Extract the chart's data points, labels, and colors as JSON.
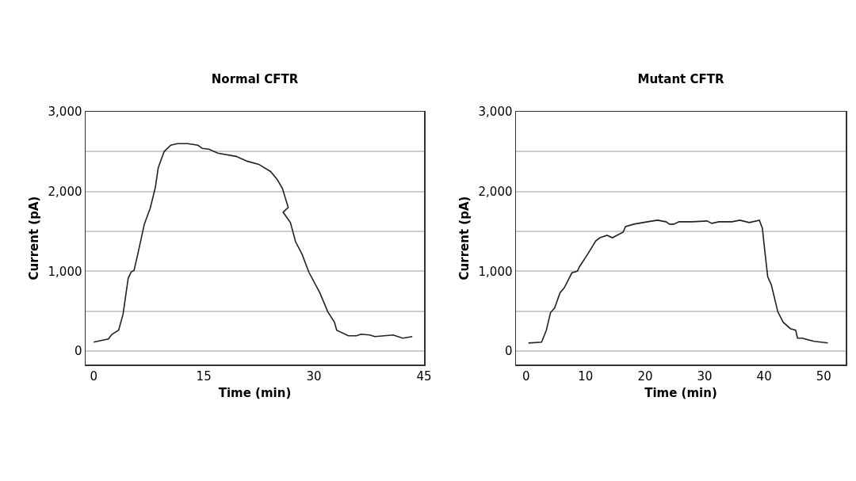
{
  "chart_data": [
    {
      "type": "line",
      "title": "Normal CFTR",
      "xlabel": "Time (min)",
      "ylabel": "Current (pA)",
      "series": [
        {
          "color": "#222222",
          "x": [
            0.0,
            2.0,
            2.5,
            3.4,
            4.0,
            4.7,
            5.1,
            5.5,
            6.0,
            6.9,
            7.7,
            8.4,
            8.8,
            9.6,
            10.5,
            11.4,
            12.8,
            14.2,
            14.8,
            15.7,
            16.9,
            19.4,
            20.9,
            22.5,
            24.1,
            25.0,
            25.7,
            26.5,
            25.8,
            26.8,
            27.5,
            28.4,
            29.3,
            30.8,
            31.9,
            32.8,
            33.1,
            34.7,
            35.8,
            36.4,
            37.6,
            38.3,
            40.8,
            42.1,
            43.4
          ],
          "values": [
            110,
            150,
            210,
            260,
            460,
            910,
            990,
            1010,
            1210,
            1590,
            1790,
            2050,
            2300,
            2500,
            2580,
            2600,
            2600,
            2580,
            2540,
            2530,
            2480,
            2440,
            2380,
            2340,
            2250,
            2150,
            2040,
            1800,
            1740,
            1610,
            1370,
            1210,
            990,
            730,
            490,
            360,
            260,
            190,
            190,
            210,
            200,
            180,
            200,
            160,
            180
          ]
        }
      ],
      "xlim": [
        -1.1,
        45
      ],
      "xticks": [
        0,
        15,
        30,
        45
      ],
      "ylim": [
        -170,
        3000
      ],
      "yticks": [
        0,
        {
          "value": 500,
          "label": null
        },
        {
          "value": 1000,
          "label": "1,000"
        },
        {
          "value": 1500,
          "label": null
        },
        {
          "value": 2000,
          "label": "2,000"
        },
        {
          "value": 2500,
          "label": null
        },
        {
          "value": 3000,
          "label": "3,000"
        }
      ],
      "grid": "y",
      "marker": "none",
      "line_style": "solid"
    },
    {
      "type": "line",
      "title": "Mutant CFTR",
      "xlabel": "Time (min)",
      "ylabel": "Current (pA)",
      "series": [
        {
          "color": "#222222",
          "x": [
            0.4,
            2.6,
            3.4,
            4.1,
            4.8,
            5.7,
            6.4,
            7.7,
            8.6,
            9.0,
            10.4,
            11.7,
            12.4,
            13.6,
            14.5,
            16.3,
            16.7,
            18.1,
            20.4,
            22.1,
            23.5,
            24.1,
            24.8,
            25.7,
            27.9,
            30.4,
            31.2,
            32.4,
            34.6,
            35.9,
            37.5,
            39.2,
            39.7,
            40.1,
            40.6,
            41.2,
            42.3,
            43.2,
            44.4,
            45.3,
            45.6,
            46.4,
            48.4,
            50.7
          ],
          "values": [
            100,
            110,
            260,
            480,
            540,
            730,
            790,
            980,
            1000,
            1060,
            1220,
            1380,
            1420,
            1450,
            1420,
            1490,
            1560,
            1590,
            1620,
            1640,
            1620,
            1590,
            1590,
            1620,
            1620,
            1630,
            1600,
            1620,
            1620,
            1640,
            1610,
            1640,
            1540,
            1260,
            930,
            830,
            490,
            360,
            280,
            260,
            160,
            160,
            120,
            100
          ]
        }
      ],
      "xlim": [
        -1.7,
        53.7
      ],
      "xticks": [
        0,
        10,
        20,
        30,
        40,
        50
      ],
      "ylim": [
        -170,
        3000
      ],
      "yticks": [
        0,
        {
          "value": 500,
          "label": null
        },
        {
          "value": 1000,
          "label": "1,000"
        },
        {
          "value": 1500,
          "label": null
        },
        {
          "value": 2000,
          "label": "2,000"
        },
        {
          "value": 2500,
          "label": null
        },
        {
          "value": 3000,
          "label": "3,000"
        }
      ],
      "grid": "y",
      "marker": "none",
      "line_style": "solid"
    }
  ]
}
